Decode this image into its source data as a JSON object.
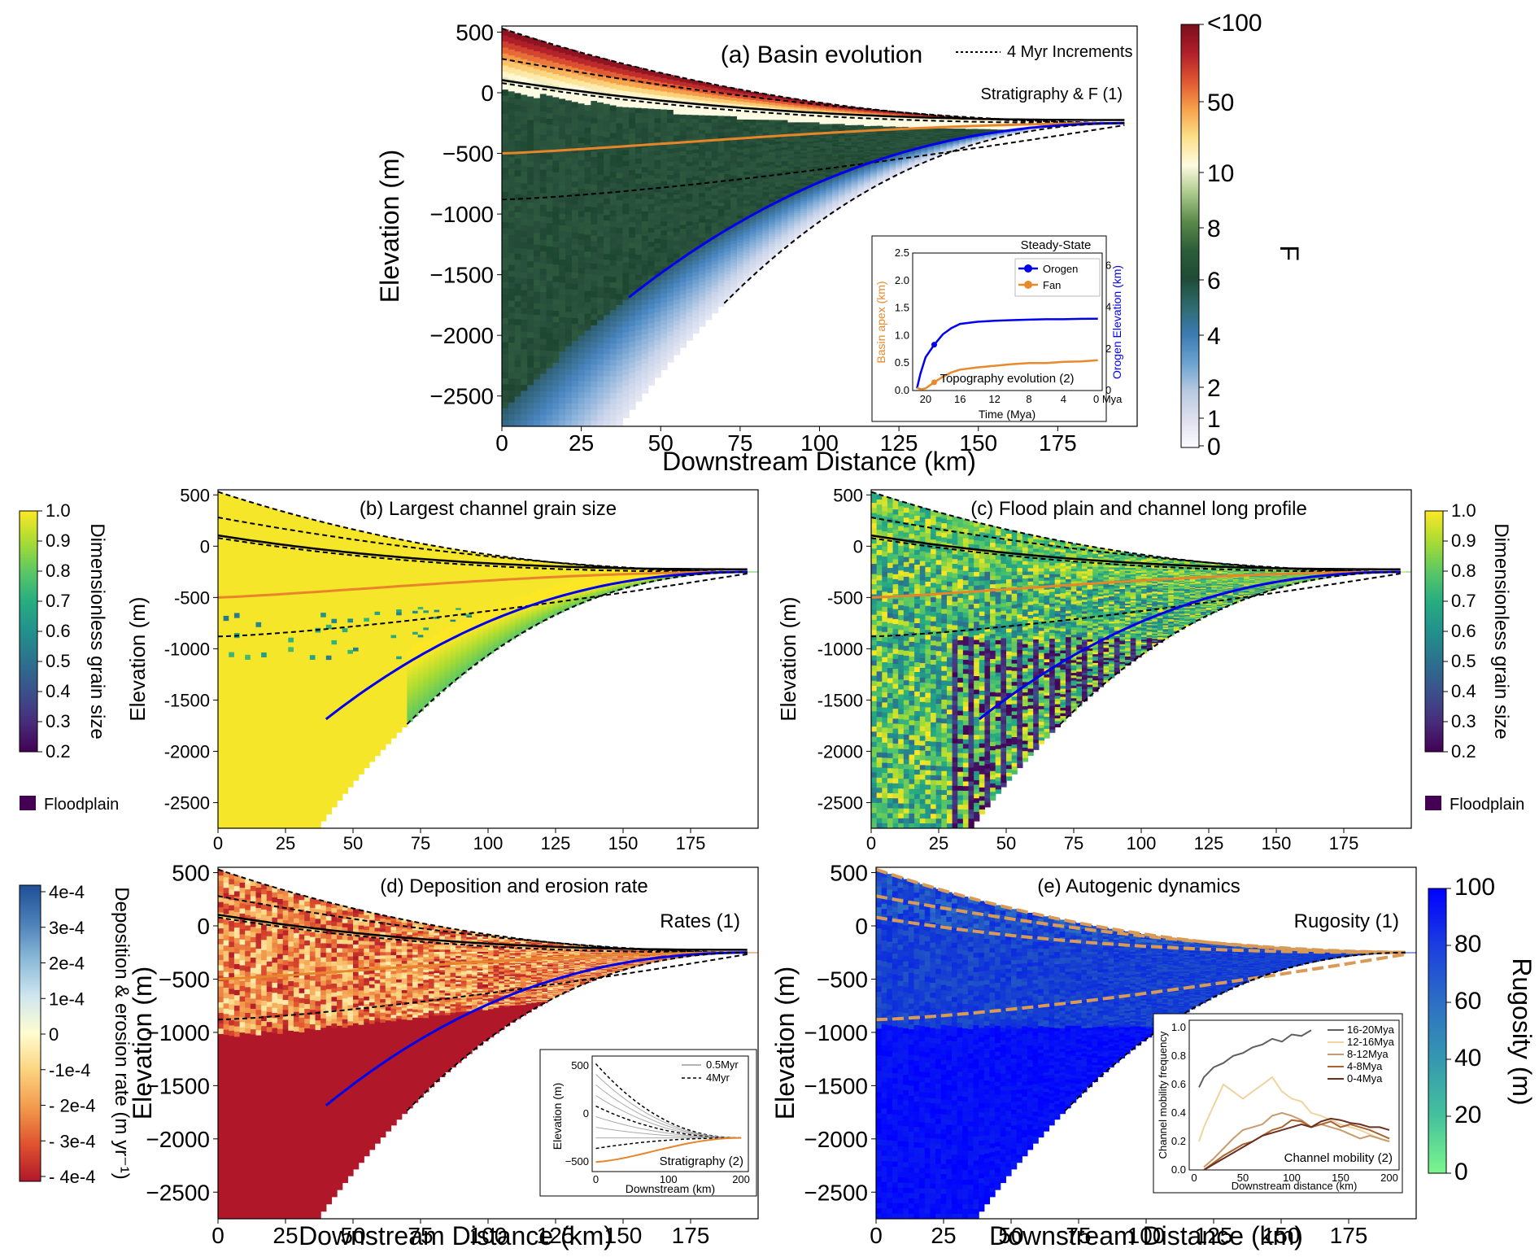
{
  "chart_data": [
    {
      "id": "a",
      "type": "heatmap",
      "title": "(a) Basin evolution",
      "xlabel": "Downstream Distance (km)",
      "ylabel": "Elevation (m)",
      "xlim": [
        0,
        200
      ],
      "ylim": [
        -2750,
        550
      ],
      "xticks": [
        "0",
        "25",
        "50",
        "75",
        "100",
        "125",
        "150",
        "175"
      ],
      "yticks": [
        "500",
        "0",
        "−500",
        "−1000",
        "−1500",
        "−2000",
        "−2500"
      ],
      "legend": "4 Myr Increments",
      "annotation": "Stratigraphy & F (1)",
      "colorbar": {
        "label": "F",
        "ticks": [
          "<100",
          "50",
          "10",
          "8",
          "6",
          "4",
          "2",
          "1",
          "0"
        ]
      },
      "inset": {
        "title": "Steady-State",
        "xlabel": "Time (Mya)",
        "ylabel_left": "Basin apex (km)",
        "ylabel_right": "Orogen Elevation (km)",
        "xticks": [
          "20",
          "16",
          "12",
          "8",
          "4",
          "0 Mya"
        ],
        "yticks_left": [
          "0.0",
          "0.5",
          "1.0",
          "1.5",
          "2.0",
          "2.5"
        ],
        "yticks_right": [
          "0",
          "2",
          "4",
          "6"
        ],
        "annotation": "Topography evolution (2)",
        "series": [
          {
            "name": "Orogen",
            "color": "#0000ee",
            "x": [
              21,
              20.6,
              20,
              19,
              18,
              17,
              16,
              14,
              12,
              10,
              8,
              6,
              4,
              2,
              0
            ],
            "y": [
              0.1,
              0.8,
              1.6,
              2.2,
              2.7,
              3.0,
              3.2,
              3.3,
              3.35,
              3.38,
              3.4,
              3.42,
              3.42,
              3.44,
              3.45
            ]
          },
          {
            "name": "Fan",
            "color": "#e8892b",
            "x": [
              21,
              20.5,
              20,
              19,
              18,
              17,
              16,
              14,
              12,
              10,
              8,
              6,
              4,
              2,
              0
            ],
            "y": [
              0.05,
              0.02,
              0.04,
              0.15,
              0.25,
              0.33,
              0.38,
              0.42,
              0.45,
              0.48,
              0.5,
              0.5,
              0.52,
              0.53,
              0.55
            ]
          }
        ]
      }
    },
    {
      "id": "b",
      "type": "heatmap",
      "title": "(b) Largest channel grain size",
      "ylabel": "Elevation (m)",
      "xlim": [
        0,
        200
      ],
      "ylim": [
        -2750,
        550
      ],
      "xticks": [
        "0",
        "25",
        "50",
        "75",
        "100",
        "125",
        "150",
        "175"
      ],
      "yticks": [
        "500",
        "0",
        "-500",
        "-1000",
        "-1500",
        "-2000",
        "-2500"
      ],
      "colorbar": {
        "label": "Dimensionless grain size",
        "ticks": [
          "1.0",
          "0.9",
          "0.8",
          "0.7",
          "0.6",
          "0.5",
          "0.4",
          "0.3",
          "0.2"
        ],
        "legend": "Floodplain"
      }
    },
    {
      "id": "c",
      "type": "heatmap",
      "title": "(c) Flood plain and channel long profile",
      "ylabel": "Elevation (m)",
      "xlim": [
        0,
        200
      ],
      "ylim": [
        -2750,
        550
      ],
      "xticks": [
        "0",
        "25",
        "50",
        "75",
        "100",
        "125",
        "150",
        "175"
      ],
      "yticks": [
        "500",
        "0",
        "-500",
        "-1000",
        "-1500",
        "-2000",
        "-2500"
      ],
      "colorbar": {
        "label": "Dimensionless grain size",
        "ticks": [
          "1.0",
          "0.9",
          "0.8",
          "0.7",
          "0.6",
          "0.5",
          "0.4",
          "0.3",
          "0.2"
        ],
        "legend": "Floodplain"
      }
    },
    {
      "id": "d",
      "type": "heatmap",
      "title": "(d) Deposition and erosion rate",
      "xlabel": "Downstream Distance (km)",
      "ylabel": "Elevation (m)",
      "xlim": [
        0,
        200
      ],
      "ylim": [
        -2750,
        550
      ],
      "xticks": [
        "0",
        "25",
        "50",
        "75",
        "100",
        "125",
        "150",
        "175"
      ],
      "yticks": [
        "500",
        "0",
        "−500",
        "−1000",
        "−1500",
        "−2000",
        "−2500"
      ],
      "annotation": "Rates (1)",
      "colorbar": {
        "label": "Deposition & erosion rate (m yr⁻¹)",
        "ticks": [
          "4e-4",
          "3e-4",
          "2e-4",
          "1e-4",
          "0",
          "-1e-4",
          "- 2e-4",
          "- 3e-4",
          "- 4e-4"
        ]
      },
      "inset": {
        "xlabel": "Downstream (km)",
        "ylabel": "Elevation (m)",
        "xticks": [
          "0",
          "100",
          "200"
        ],
        "yticks": [
          "500",
          "0",
          "−500"
        ],
        "legend": [
          "0.5Myr",
          "4Myr"
        ],
        "annotation": "Stratigraphy (2)"
      }
    },
    {
      "id": "e",
      "type": "heatmap",
      "title": "(e) Autogenic dynamics",
      "xlabel": "Downstream Distance (km)",
      "ylabel": "Elevation (m)",
      "xlim": [
        0,
        200
      ],
      "ylim": [
        -2750,
        550
      ],
      "xticks": [
        "0",
        "25",
        "50",
        "75",
        "100",
        "125",
        "150",
        "175"
      ],
      "yticks": [
        "500",
        "0",
        "−500",
        "−1000",
        "−1500",
        "−2000",
        "−2500"
      ],
      "annotation": "Rugosity (1)",
      "colorbar": {
        "label": "Rugosity (m)",
        "ticks": [
          "100",
          "80",
          "60",
          "40",
          "20",
          "0"
        ]
      },
      "inset": {
        "xlabel": "Downstream distance (km)",
        "ylabel": "Channel mobility frequency",
        "xticks": [
          "0",
          "50",
          "100",
          "150",
          "200"
        ],
        "yticks": [
          "0.0",
          "0.2",
          "0.4",
          "0.6",
          "0.8",
          "1.0"
        ],
        "annotation": "Channel mobility (2)",
        "series": [
          {
            "name": "16-20Mya",
            "color": "#5f5f5f",
            "x": [
              5,
              10,
              20,
              30,
              40,
              50,
              60,
              70,
              80,
              90,
              100,
              110,
              120
            ],
            "y": [
              0.58,
              0.65,
              0.72,
              0.75,
              0.8,
              0.82,
              0.86,
              0.88,
              0.92,
              0.9,
              0.95,
              0.94,
              0.98
            ]
          },
          {
            "name": "12-16Mya",
            "color": "#f0d3a0",
            "x": [
              5,
              10,
              20,
              30,
              40,
              50,
              60,
              70,
              80,
              90,
              100,
              110,
              120,
              130,
              140,
              150,
              160,
              170,
              180,
              190,
              200
            ],
            "y": [
              0.2,
              0.3,
              0.45,
              0.6,
              0.55,
              0.5,
              0.55,
              0.6,
              0.65,
              0.55,
              0.5,
              0.48,
              0.4,
              0.38,
              0.35,
              0.32,
              0.3,
              0.28,
              0.25,
              0.22,
              0.2
            ]
          },
          {
            "name": "8-12Mya",
            "color": "#c99a6b",
            "x": [
              10,
              20,
              30,
              40,
              50,
              60,
              70,
              80,
              90,
              100,
              110,
              120,
              130,
              140,
              150,
              160,
              170,
              180,
              190,
              200
            ],
            "y": [
              0.02,
              0.08,
              0.15,
              0.22,
              0.28,
              0.3,
              0.32,
              0.38,
              0.4,
              0.38,
              0.35,
              0.3,
              0.32,
              0.3,
              0.28,
              0.25,
              0.22,
              0.24,
              0.22,
              0.2
            ]
          },
          {
            "name": "4-8Mya",
            "color": "#a8632e",
            "x": [
              10,
              20,
              30,
              40,
              50,
              60,
              70,
              80,
              90,
              100,
              110,
              120,
              130,
              140,
              150,
              160,
              170,
              180,
              190,
              200
            ],
            "y": [
              0.0,
              0.05,
              0.1,
              0.14,
              0.18,
              0.2,
              0.24,
              0.28,
              0.3,
              0.35,
              0.34,
              0.3,
              0.32,
              0.34,
              0.3,
              0.32,
              0.3,
              0.28,
              0.25,
              0.22
            ]
          },
          {
            "name": "0-4Mya",
            "color": "#6a2f1e",
            "x": [
              10,
              20,
              30,
              40,
              50,
              60,
              70,
              80,
              90,
              100,
              110,
              120,
              130,
              140,
              150,
              160,
              170,
              180,
              190,
              200
            ],
            "y": [
              0.0,
              0.04,
              0.08,
              0.12,
              0.16,
              0.2,
              0.24,
              0.26,
              0.28,
              0.3,
              0.32,
              0.3,
              0.34,
              0.36,
              0.35,
              0.33,
              0.32,
              0.3,
              0.3,
              0.28
            ]
          }
        ]
      }
    }
  ],
  "palettes": {
    "F": [
      "#fbfbff",
      "#dfe0ee",
      "#b7c9e1",
      "#6aa3d0",
      "#3c7bb3",
      "#2e6b6e",
      "#1f4b36",
      "#2c5e38",
      "#5a8a4a",
      "#a9c98a",
      "#fdfbe0",
      "#fde08a",
      "#f6a24a",
      "#e05531",
      "#b01e2a",
      "#7a0e1c"
    ],
    "grain": [
      "#440154",
      "#472d7b",
      "#3b518b",
      "#2c718e",
      "#21918c",
      "#27ad81",
      "#5cc863",
      "#aadc32",
      "#fde725"
    ],
    "rate": [
      "#1f4e96",
      "#4a7fb8",
      "#8ab9d8",
      "#cfe6ef",
      "#fffdd0",
      "#fbd37f",
      "#f39a4c",
      "#e0522f",
      "#b0182a"
    ],
    "rugosity": [
      "#0000ff",
      "#1b3ee0",
      "#2d6fc5",
      "#3598b0",
      "#44c29c",
      "#7cf58c"
    ]
  }
}
